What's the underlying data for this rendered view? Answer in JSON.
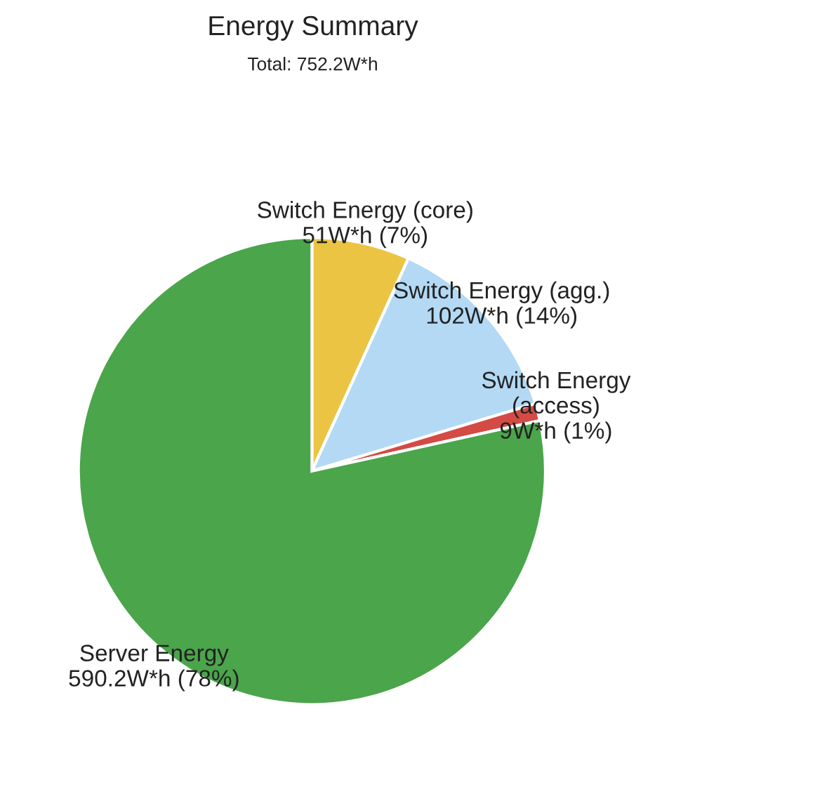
{
  "chart_data": {
    "type": "pie",
    "title": "Energy Summary",
    "subtitle": "Total: 752.2W*h",
    "categories": [
      "Switch Energy (core)",
      "Switch Energy (agg.)",
      "Switch Energy\n(access)",
      "Server Energy"
    ],
    "values": [
      51,
      102,
      9,
      590.2
    ],
    "value_labels": [
      "51W*h (7%)",
      "102W*h (14%)",
      "9W*h (1%)",
      "590.2W*h (78%)"
    ],
    "colors": [
      "#ecc443",
      "#b3d9f5",
      "#d44a44",
      "#4ba54b"
    ],
    "legend": false
  }
}
